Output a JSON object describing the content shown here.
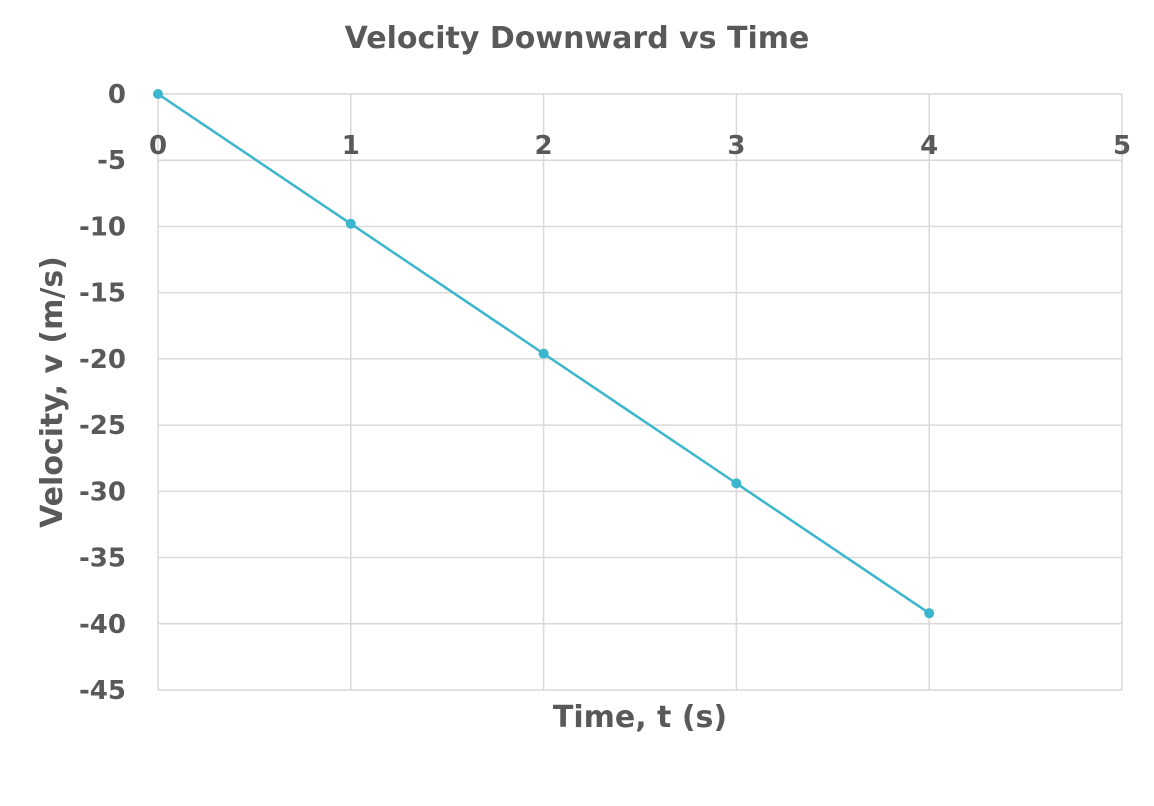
{
  "chart_data": {
    "type": "line",
    "title": "Velocity Downward vs Time",
    "xlabel": "Time, t (s)",
    "ylabel": "Velocity, v (m/s)",
    "xlim": [
      0,
      5
    ],
    "ylim": [
      -45,
      0
    ],
    "x_ticks": [
      0,
      1,
      2,
      3,
      4,
      5
    ],
    "y_ticks": [
      0,
      -5,
      -10,
      -15,
      -20,
      -25,
      -30,
      -35,
      -40,
      -45
    ],
    "grid": true,
    "x_tick_labels_position": "top",
    "legend": "none",
    "series": [
      {
        "x": [
          0,
          1,
          2,
          3,
          4
        ],
        "values": [
          0,
          -9.8,
          -19.6,
          -29.4,
          -39.2
        ],
        "color": "#3cb6cc",
        "marker": "circle"
      }
    ]
  }
}
